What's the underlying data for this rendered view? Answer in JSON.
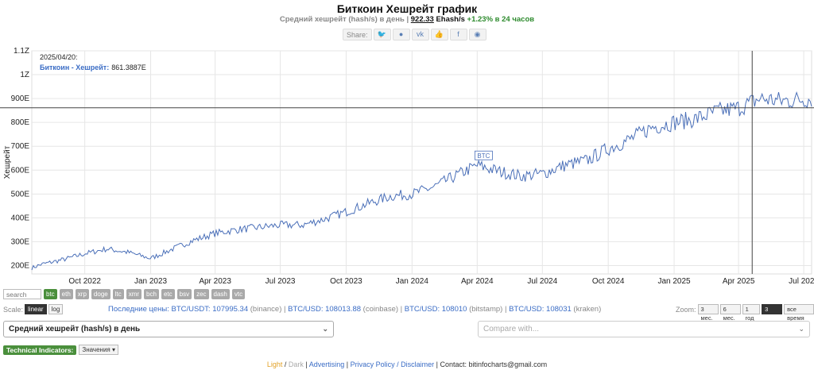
{
  "page": {
    "title": "Биткоин Хешрейт график",
    "subtitle_prefix": "Средний хешрейт (hash/s) в день |",
    "subtitle_value": "922.33",
    "subtitle_unit": "Ehash/s",
    "subtitle_change": "+1.23% в 24 часов"
  },
  "share": {
    "label": "Share:",
    "buttons": [
      {
        "name": "twitter-icon",
        "glyph": "🐦"
      },
      {
        "name": "reddit-icon",
        "glyph": "●"
      },
      {
        "name": "vk-icon",
        "glyph": "vk"
      },
      {
        "name": "like-icon",
        "glyph": "👍"
      },
      {
        "name": "facebook-icon",
        "glyph": "f"
      },
      {
        "name": "weibo-icon",
        "glyph": "◉"
      }
    ]
  },
  "chart_data": {
    "type": "line",
    "title": "",
    "xlabel": "",
    "ylabel": "Хешрейт",
    "ylim": [
      165,
      1100
    ],
    "yticks": [
      {
        "label": "200E",
        "v": 200
      },
      {
        "label": "300E",
        "v": 300
      },
      {
        "label": "400E",
        "v": 400
      },
      {
        "label": "500E",
        "v": 500
      },
      {
        "label": "600E",
        "v": 600
      },
      {
        "label": "700E",
        "v": 700
      },
      {
        "label": "800E",
        "v": 800
      },
      {
        "label": "900E",
        "v": 900
      },
      {
        "label": "1Z",
        "v": 1000
      },
      {
        "label": "1.1Z",
        "v": 1100
      }
    ],
    "xrange": [
      "2022-07-19",
      "2025-07-12"
    ],
    "xticks": [
      {
        "label": "Oct 2022",
        "date": "2022-10-01"
      },
      {
        "label": "Jan 2023",
        "date": "2023-01-01"
      },
      {
        "label": "Apr 2023",
        "date": "2023-04-01"
      },
      {
        "label": "Jul 2023",
        "date": "2023-07-01"
      },
      {
        "label": "Oct 2023",
        "date": "2023-10-01"
      },
      {
        "label": "Jan 2024",
        "date": "2024-01-01"
      },
      {
        "label": "Apr 2024",
        "date": "2024-04-01"
      },
      {
        "label": "Jul 2024",
        "date": "2024-07-01"
      },
      {
        "label": "Oct 2024",
        "date": "2024-10-01"
      },
      {
        "label": "Jan 2025",
        "date": "2025-01-01"
      },
      {
        "label": "Apr 2025",
        "date": "2025-04-01"
      },
      {
        "label": "Jul 2025",
        "date": "2025-07-01"
      }
    ],
    "series": [
      {
        "name": "Биткоин - Хешрейт",
        "color": "#4a6fb8",
        "x": [
          "2022-07-19",
          "2022-08-01",
          "2022-09-01",
          "2022-10-01",
          "2022-11-01",
          "2022-12-01",
          "2023-01-01",
          "2023-02-01",
          "2023-03-01",
          "2023-04-01",
          "2023-05-01",
          "2023-06-01",
          "2023-07-01",
          "2023-08-01",
          "2023-09-01",
          "2023-10-01",
          "2023-11-01",
          "2023-12-01",
          "2024-01-01",
          "2024-02-01",
          "2024-03-01",
          "2024-04-01",
          "2024-05-01",
          "2024-06-01",
          "2024-07-01",
          "2024-08-01",
          "2024-09-01",
          "2024-10-01",
          "2024-11-01",
          "2024-12-01",
          "2025-01-01",
          "2025-02-01",
          "2025-03-01",
          "2025-04-01",
          "2025-05-01",
          "2025-06-01",
          "2025-07-12"
        ],
        "values": [
          190,
          205,
          225,
          250,
          270,
          255,
          230,
          270,
          305,
          335,
          350,
          360,
          370,
          370,
          395,
          425,
          460,
          490,
          500,
          530,
          575,
          620,
          595,
          575,
          585,
          620,
          640,
          690,
          730,
          780,
          800,
          815,
          845,
          860,
          900,
          890,
          900
        ]
      }
    ],
    "tooltip": {
      "date": "2025/04/20:",
      "series": "Биткоин - Хешрейт:",
      "value": "861.3887E"
    },
    "annotation": "BTC",
    "crosshair": {
      "date": "2025-04-20",
      "value": 861.3887
    },
    "grid": true
  },
  "controls": {
    "search_placeholder": "search",
    "coins": [
      {
        "label": "btc",
        "active": true
      },
      {
        "label": "eth"
      },
      {
        "label": "xrp"
      },
      {
        "label": "doge"
      },
      {
        "label": "ltc"
      },
      {
        "label": "xmr"
      },
      {
        "label": "bch"
      },
      {
        "label": "etc"
      },
      {
        "label": "bsv"
      },
      {
        "label": "zec"
      },
      {
        "label": "dash"
      },
      {
        "label": "vtc"
      }
    ],
    "scale_label": "Scale:",
    "scale_options": [
      {
        "label": "linear",
        "active": true
      },
      {
        "label": "log"
      }
    ],
    "prices_label": "Последние цены:",
    "prices": [
      {
        "pair": "BTC/USDT: 107995.34",
        "src": "(binance)"
      },
      {
        "pair": "BTC/USD: 108013.88",
        "src": "(coinbase)"
      },
      {
        "pair": "BTC/USD: 108010",
        "src": "(bitstamp)"
      },
      {
        "pair": "BTC/USD: 108031",
        "src": "(kraken)"
      }
    ],
    "zoom_label": "Zoom:",
    "zoom_options": [
      {
        "label": "3 мес."
      },
      {
        "label": "6 мес."
      },
      {
        "label": "1 год"
      },
      {
        "label": "3 года",
        "active": true
      },
      {
        "label": "все время"
      }
    ],
    "metric_select": "Средний хешрейт (hash/s) в день",
    "compare_placeholder": "Compare with...",
    "tech_label": "Technical Indicators:",
    "tech_dropdown": "Значения ▾"
  },
  "footer": {
    "light": "Light",
    "sep1": " / ",
    "dark": "Dark",
    "sep2": " | ",
    "advertising": "Advertising",
    "sep3": " | ",
    "privacy": "Privacy Policy / Disclaimer",
    "contact": " | Contact: bitinfocharts@gmail.com"
  }
}
